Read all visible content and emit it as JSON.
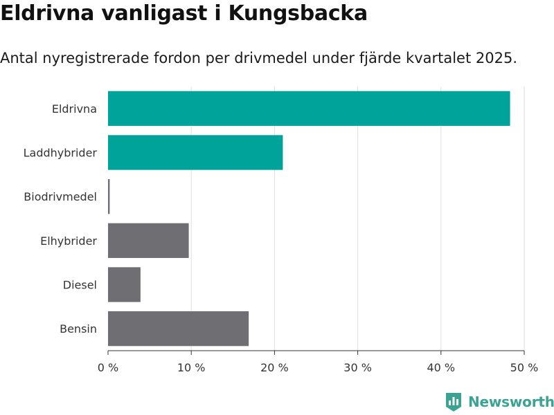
{
  "header": {
    "title": "Eldrivna vanligast i Kungsbacka",
    "subtitle": "Antal nyregistrerade fordon per drivmedel under fjärde kvartalet 2025."
  },
  "brand": {
    "name": "Newsworthy",
    "icon": "newsworthy-logo-icon"
  },
  "colors": {
    "highlight": "#00a399",
    "muted": "#6f6e73",
    "grid": "#dedede",
    "axis": "#333333"
  },
  "chart_data": {
    "type": "bar",
    "orientation": "horizontal",
    "title": "Eldrivna vanligast i Kungsbacka",
    "subtitle": "Antal nyregistrerade fordon per drivmedel under fjärde kvartalet 2025.",
    "categories": [
      "Eldrivna",
      "Laddhybrider",
      "Biodrivmedel",
      "Elhybrider",
      "Diesel",
      "Bensin"
    ],
    "values": [
      48.3,
      21.0,
      0.2,
      9.7,
      3.9,
      16.9
    ],
    "highlighted": [
      true,
      true,
      false,
      false,
      false,
      false
    ],
    "xlim": [
      0,
      50
    ],
    "xticks": [
      0,
      10,
      20,
      30,
      40,
      50
    ],
    "xtick_labels": [
      "0 %",
      "10 %",
      "20 %",
      "30 %",
      "40 %",
      "50 %"
    ],
    "xlabel": "",
    "ylabel": "",
    "grid": true,
    "legend": "none"
  }
}
